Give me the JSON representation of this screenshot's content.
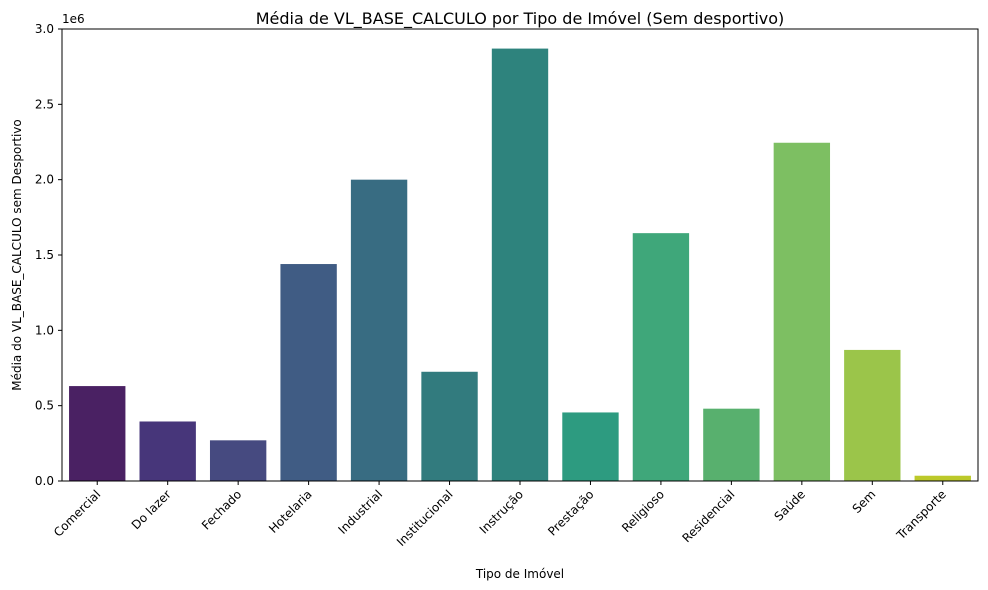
{
  "chart_data": {
    "type": "bar",
    "title": "Média de VL_BASE_CALCULO por Tipo de Imóvel (Sem desportivo)",
    "xlabel": "Tipo de Imóvel",
    "ylabel": "Média do VL_BASE_CALCULO sem Desportivo",
    "y_offset_label": "1e6",
    "ylim": [
      0,
      3.0
    ],
    "y_scale_factor": 1000000,
    "yticks": [
      0.0,
      0.5,
      1.0,
      1.5,
      2.0,
      2.5,
      3.0
    ],
    "ytick_labels": [
      "0.0",
      "0.5",
      "1.0",
      "1.5",
      "2.0",
      "2.5",
      "3.0"
    ],
    "categories": [
      "Comercial",
      "Do lazer",
      "Fechado",
      "Hotelaria",
      "Industrial",
      "Institucional",
      "Instrução",
      "Prestação",
      "Religioso",
      "Residencial",
      "Saúde",
      "Sem",
      "Transporte"
    ],
    "values": [
      630000,
      395000,
      270000,
      1440000,
      2000000,
      725000,
      2870000,
      455000,
      1645000,
      480000,
      2245000,
      870000,
      35000
    ],
    "colors": [
      "#4a2163",
      "#47367a",
      "#464a80",
      "#405c84",
      "#386c82",
      "#327b7e",
      "#2e837d",
      "#2d9b80",
      "#3fa77a",
      "#58b06e",
      "#7dbf62",
      "#9bc54a",
      "#bcc92a"
    ],
    "grid": false,
    "legend": "none"
  }
}
